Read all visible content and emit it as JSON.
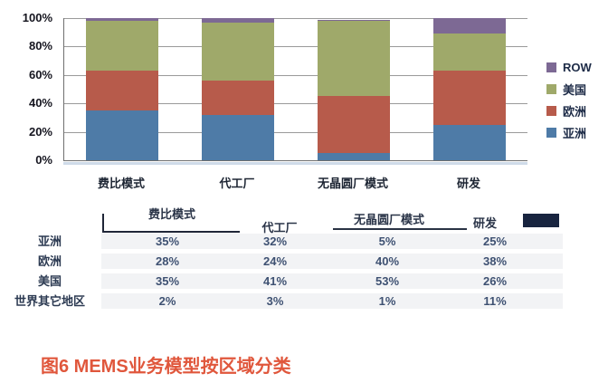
{
  "chart_data": {
    "type": "bar",
    "stacked": true,
    "percent": true,
    "title": "",
    "xlabel": "",
    "ylabel": "",
    "categories": [
      "费比模式",
      "代工厂",
      "无晶圆厂模式",
      "研发"
    ],
    "series": [
      {
        "name": "亚洲",
        "color": "#4e7ba7",
        "values": [
          35,
          32,
          5,
          25
        ]
      },
      {
        "name": "欧洲",
        "color": "#b75b4b",
        "values": [
          28,
          24,
          40,
          38
        ]
      },
      {
        "name": "美国",
        "color": "#9fa96a",
        "values": [
          35,
          41,
          53,
          26
        ]
      },
      {
        "name": "ROW",
        "color": "#7d6994",
        "values": [
          2,
          3,
          1,
          11
        ]
      }
    ],
    "ylim": [
      0,
      100
    ],
    "yticks": [
      "0%",
      "20%",
      "40%",
      "60%",
      "80%",
      "100%"
    ],
    "grid": true,
    "legend_position": "right",
    "legend_order": [
      "ROW",
      "美国",
      "欧洲",
      "亚洲"
    ]
  },
  "table": {
    "columns": [
      "费比模式",
      "代工厂",
      "无晶圆厂模式",
      "研发"
    ],
    "header_chip_color": "#18243f",
    "rows": [
      {
        "label": "亚洲",
        "values": [
          "35%",
          "32%",
          "5%",
          "25%"
        ]
      },
      {
        "label": "欧洲",
        "values": [
          "28%",
          "24%",
          "40%",
          "38%"
        ]
      },
      {
        "label": "美国",
        "values": [
          "35%",
          "41%",
          "53%",
          "26%"
        ]
      },
      {
        "label": "世界其它地区",
        "values": [
          "2%",
          "3%",
          "1%",
          "11%"
        ]
      }
    ]
  },
  "caption": {
    "text": "图6  MEMS业务模型按区域分类",
    "color": "#e0573c"
  }
}
